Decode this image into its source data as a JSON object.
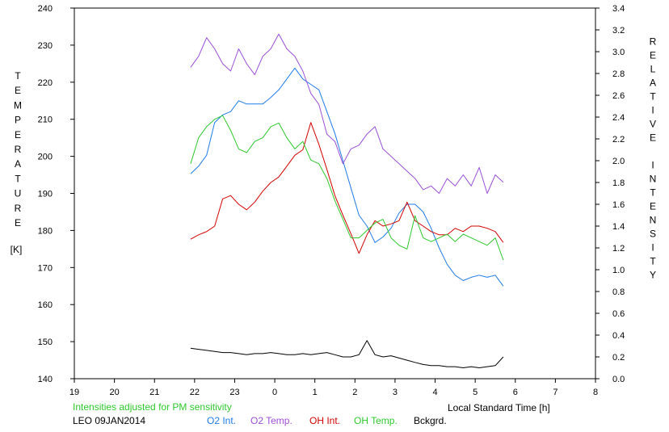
{
  "chart_data": {
    "type": "line",
    "title": "",
    "note": "Intensities adjusted for PM sensitivity",
    "station": "LEO 09JAN2014",
    "xlabel": "Local Standard Time [h]",
    "ylabel_left": "TEMPERATURE",
    "ylabel_left_unit": "[K]",
    "ylabel_right": "RELATIVE INTENSITY",
    "x_ticks": [
      "19",
      "20",
      "21",
      "22",
      "23",
      "0",
      "1",
      "2",
      "3",
      "4",
      "5",
      "6",
      "7",
      "8"
    ],
    "x_range": [
      19,
      32
    ],
    "y_left_range": [
      140,
      240
    ],
    "y_left_ticks": [
      "140",
      "150",
      "160",
      "170",
      "180",
      "190",
      "200",
      "210",
      "220",
      "230",
      "240"
    ],
    "y_right_range": [
      0.0,
      3.4
    ],
    "y_right_ticks": [
      "0.0",
      "0.2",
      "0.4",
      "0.6",
      "0.8",
      "1.0",
      "1.2",
      "1.4",
      "1.6",
      "1.8",
      "2.0",
      "2.2",
      "2.4",
      "2.6",
      "2.8",
      "3.0",
      "3.2",
      "3.4"
    ],
    "grid": false,
    "legend_position": "bottom",
    "x_hours": [
      21.9,
      22.1,
      22.3,
      22.5,
      22.7,
      22.9,
      23.1,
      23.3,
      23.5,
      23.7,
      23.9,
      24.1,
      24.3,
      24.5,
      24.7,
      24.9,
      25.1,
      25.3,
      25.5,
      25.7,
      25.9,
      26.1,
      26.3,
      26.5,
      26.7,
      26.9,
      27.1,
      27.3,
      27.5,
      27.7,
      27.9,
      28.1,
      28.3,
      28.5,
      28.7,
      28.9,
      29.1,
      29.3,
      29.5,
      29.7
    ],
    "series": [
      {
        "name": "O2 Int.",
        "color": "#1e7be8",
        "axis": "right",
        "values": [
          1.88,
          1.95,
          2.05,
          2.35,
          2.42,
          2.45,
          2.55,
          2.52,
          2.52,
          2.52,
          2.58,
          2.65,
          2.75,
          2.85,
          2.75,
          2.7,
          2.65,
          2.45,
          2.25,
          2.0,
          1.75,
          1.5,
          1.4,
          1.25,
          1.3,
          1.38,
          1.52,
          1.6,
          1.6,
          1.53,
          1.38,
          1.2,
          1.05,
          0.95,
          0.9,
          0.93,
          0.95,
          0.93,
          0.95,
          0.85
        ]
      },
      {
        "name": "O2 Temp.",
        "color": "#9b4fd6",
        "axis": "left",
        "values": [
          224,
          227,
          232,
          229,
          225,
          223,
          229,
          225,
          222,
          227,
          229,
          233,
          229,
          227,
          223,
          217,
          214,
          206,
          204,
          198,
          202,
          203,
          206,
          208,
          202,
          200,
          198,
          196,
          194,
          191,
          192,
          190,
          194,
          192,
          195,
          192,
          197,
          190,
          195,
          193
        ]
      },
      {
        "name": "OH Int.",
        "color": "#d40000",
        "axis": "right",
        "values": [
          1.28,
          1.32,
          1.35,
          1.4,
          1.65,
          1.68,
          1.6,
          1.55,
          1.62,
          1.72,
          1.8,
          1.85,
          1.95,
          2.05,
          2.1,
          2.35,
          2.15,
          1.92,
          1.68,
          1.5,
          1.33,
          1.15,
          1.32,
          1.45,
          1.4,
          1.42,
          1.45,
          1.62,
          1.45,
          1.4,
          1.35,
          1.32,
          1.32,
          1.38,
          1.35,
          1.4,
          1.4,
          1.38,
          1.35,
          1.25
        ]
      },
      {
        "name": "OH Temp.",
        "color": "#2ec82e",
        "axis": "left",
        "values": [
          198,
          205,
          208,
          210,
          211,
          207,
          202,
          201,
          204,
          205,
          208,
          209,
          205,
          202,
          204,
          199,
          198,
          194,
          188,
          183,
          178,
          178,
          180,
          182,
          183,
          178,
          176,
          175,
          184,
          178,
          177,
          178,
          179,
          177,
          179,
          178,
          177,
          176,
          178,
          172
        ]
      },
      {
        "name": "Bckgrd.",
        "color": "#000000",
        "axis": "right",
        "values": [
          0.28,
          0.27,
          0.26,
          0.25,
          0.24,
          0.24,
          0.23,
          0.22,
          0.23,
          0.23,
          0.24,
          0.23,
          0.22,
          0.22,
          0.23,
          0.22,
          0.23,
          0.24,
          0.22,
          0.2,
          0.2,
          0.22,
          0.35,
          0.22,
          0.2,
          0.21,
          0.19,
          0.17,
          0.15,
          0.13,
          0.12,
          0.12,
          0.11,
          0.11,
          0.1,
          0.11,
          0.1,
          0.11,
          0.12,
          0.2
        ]
      }
    ]
  }
}
